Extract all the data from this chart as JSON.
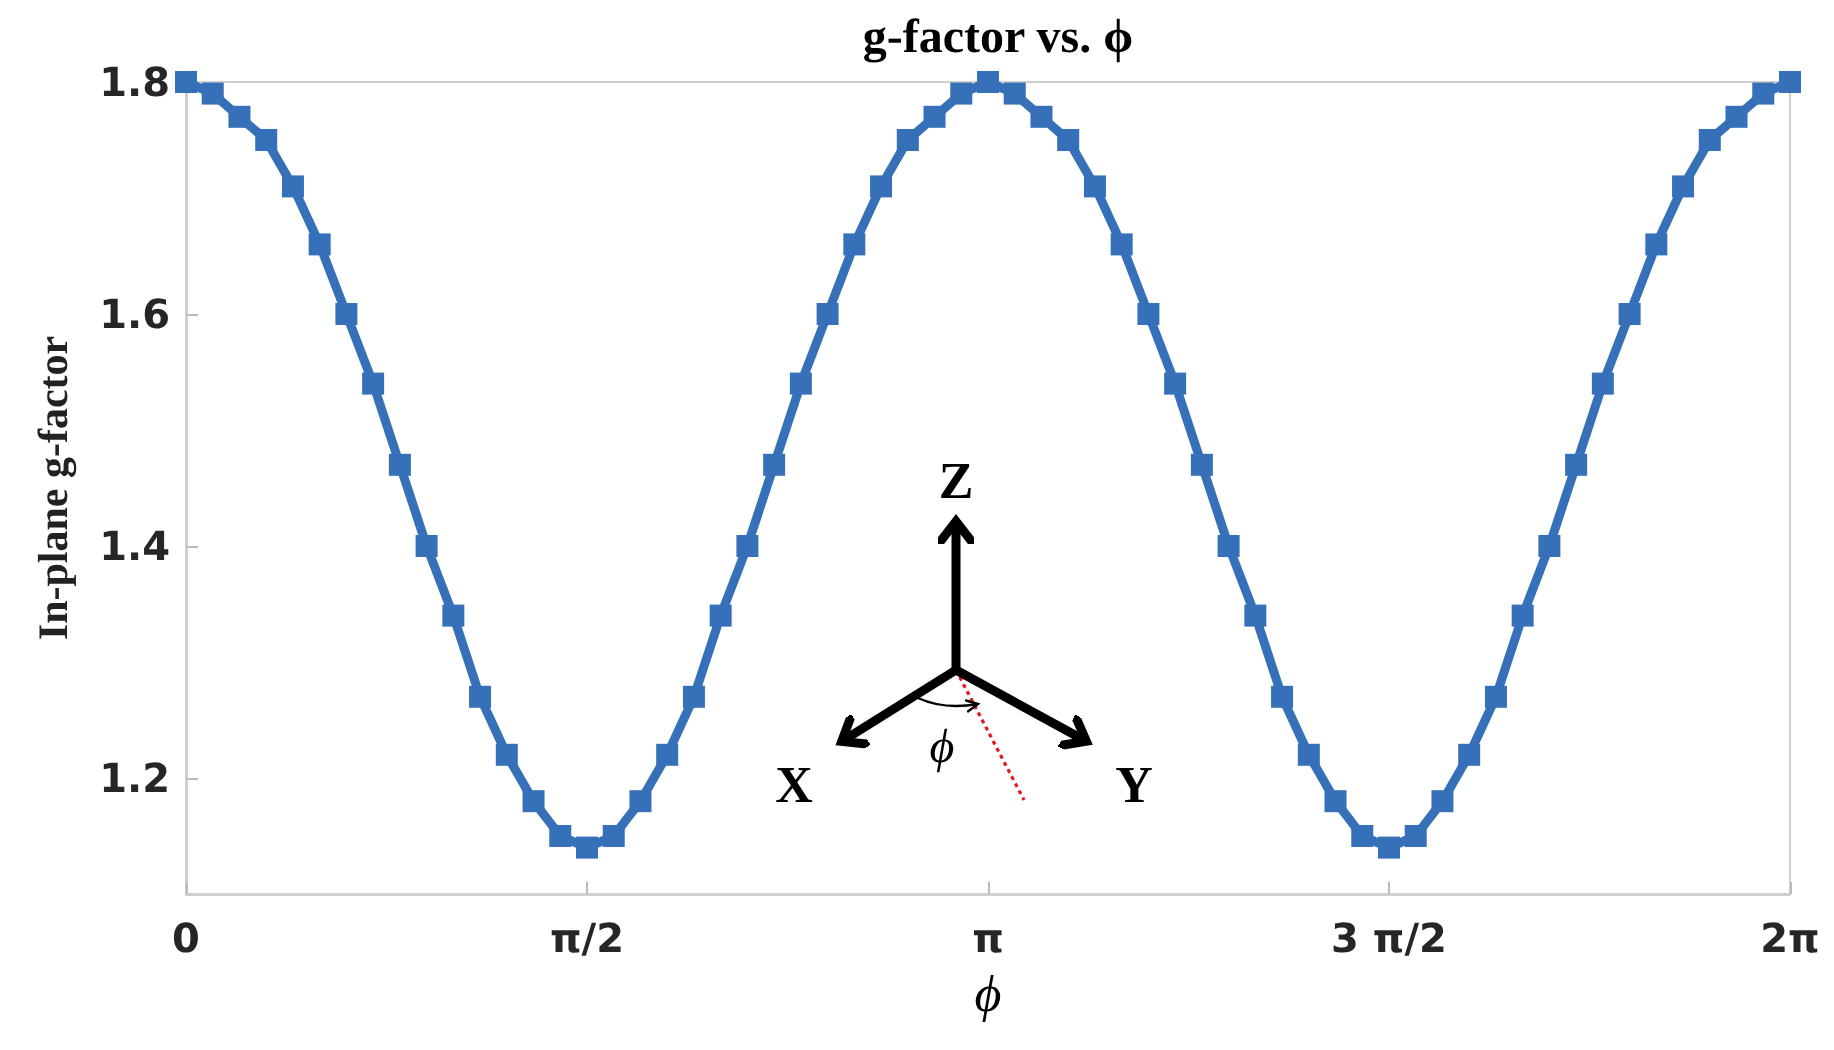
{
  "chart_data": {
    "type": "line",
    "title": "g-factor vs. ϕ",
    "xlabel": "ϕ",
    "ylabel": "In-plane g-factor",
    "annotations": [
      "Z",
      "X",
      "Y",
      "ϕ"
    ],
    "x": [
      0,
      0.1047,
      0.2094,
      0.3142,
      0.4189,
      0.5236,
      0.6283,
      0.733,
      0.8378,
      0.9425,
      1.0472,
      1.1519,
      1.2566,
      1.3614,
      1.4661,
      1.5708,
      1.6755,
      1.7802,
      1.885,
      1.9897,
      2.0944,
      2.1991,
      2.3038,
      2.4086,
      2.5133,
      2.618,
      2.7227,
      2.8274,
      2.9322,
      3.0369,
      3.1416,
      3.2463,
      3.351,
      3.4558,
      3.5605,
      3.6652,
      3.7699,
      3.8746,
      3.9794,
      4.0841,
      4.1888,
      4.2935,
      4.3982,
      4.5029,
      4.6077,
      4.7124,
      4.8171,
      4.9218,
      5.0265,
      5.1313,
      5.236,
      5.3407,
      5.4454,
      5.5501,
      5.6549,
      5.7596,
      5.8643,
      5.969,
      6.0737,
      6.1785,
      6.2832
    ],
    "series": [
      {
        "color": "#3570b8",
        "values": [
          1.8,
          1.79,
          1.77,
          1.75,
          1.71,
          1.66,
          1.6,
          1.54,
          1.47,
          1.4,
          1.34,
          1.27,
          1.22,
          1.18,
          1.15,
          1.14,
          1.15,
          1.18,
          1.22,
          1.27,
          1.34,
          1.4,
          1.47,
          1.54,
          1.6,
          1.66,
          1.71,
          1.75,
          1.77,
          1.79,
          1.8,
          1.79,
          1.77,
          1.75,
          1.71,
          1.66,
          1.6,
          1.54,
          1.47,
          1.4,
          1.34,
          1.27,
          1.22,
          1.18,
          1.15,
          1.14,
          1.15,
          1.18,
          1.22,
          1.27,
          1.34,
          1.4,
          1.47,
          1.54,
          1.6,
          1.66,
          1.71,
          1.75,
          1.77,
          1.79,
          1.8
        ]
      }
    ],
    "xlim": [
      0,
      6.2832
    ],
    "xticks": [
      {
        "value": 0,
        "label": "0"
      },
      {
        "value": 1.5708,
        "label": "π/2"
      },
      {
        "value": 3.1416,
        "label": "π"
      },
      {
        "value": 4.7124,
        "label": "3 π/2"
      },
      {
        "value": 6.2832,
        "label": "2π"
      }
    ],
    "ylim": [
      1.1,
      1.8
    ],
    "yticks": [
      1.2,
      1.4,
      1.6,
      1.8
    ],
    "grid": false,
    "marker": "square",
    "line_style": "solid"
  }
}
